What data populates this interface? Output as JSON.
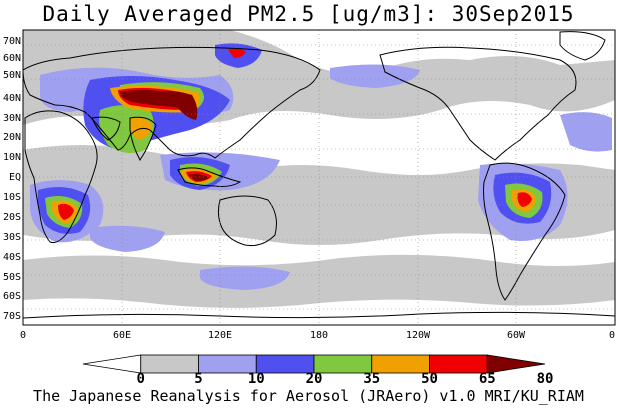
{
  "title": "Daily Averaged PM2.5 [ug/m3]: 30Sep2015",
  "footer": "The Japanese Reanalysis for Aerosol (JRAero) v1.0 MRI/KU_RIAM",
  "map": {
    "projection": "equirectangular",
    "lon_range": [
      0,
      360
    ],
    "lat_range": [
      -75,
      75
    ],
    "grid": "dotted",
    "lat_ticks": [
      "70N",
      "60N",
      "50N",
      "40N",
      "30N",
      "20N",
      "10N",
      "EQ",
      "10S",
      "20S",
      "30S",
      "40S",
      "50S",
      "60S",
      "70S"
    ],
    "lon_ticks": [
      "0",
      "60E",
      "120E",
      "180",
      "120W",
      "60W",
      "0"
    ]
  },
  "colorbar": {
    "levels": [
      "0",
      "5",
      "10",
      "20",
      "35",
      "50",
      "65",
      "80"
    ],
    "colors": [
      "#ffffff",
      "#c8c8c8",
      "#a0a0f0",
      "#5050f0",
      "#80c840",
      "#f0a000",
      "#f00000",
      "#800000"
    ],
    "units": "ug/m3"
  }
}
